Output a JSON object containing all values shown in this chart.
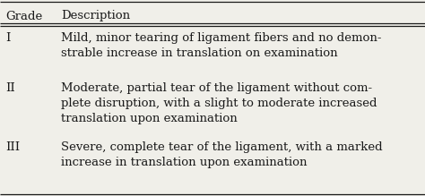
{
  "title_col1": "Grade",
  "title_col2": "Description",
  "rows": [
    {
      "grade": "I",
      "description": "Mild, minor tearing of ligament fibers and no demon-\nstrable increase in translation on examination"
    },
    {
      "grade": "II",
      "description": "Moderate, partial tear of the ligament without com-\nplete disruption, with a slight to moderate increased\ntranslation upon examination"
    },
    {
      "grade": "III",
      "description": "Severe, complete tear of the ligament, with a marked\nincrease in translation upon examination"
    }
  ],
  "bg_color": "#f0efe9",
  "text_color": "#1a1a1a",
  "header_fontsize": 9.5,
  "body_fontsize": 9.5,
  "fig_width": 4.74,
  "fig_height": 2.19,
  "dpi": 100
}
